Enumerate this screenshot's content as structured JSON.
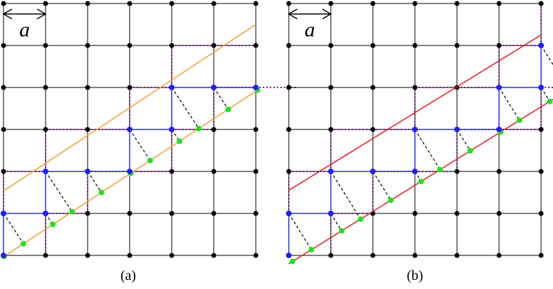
{
  "panels": [
    {
      "scale_label": "a",
      "caption": "(a)"
    },
    {
      "scale_label": "a",
      "caption": "(b)"
    }
  ]
}
